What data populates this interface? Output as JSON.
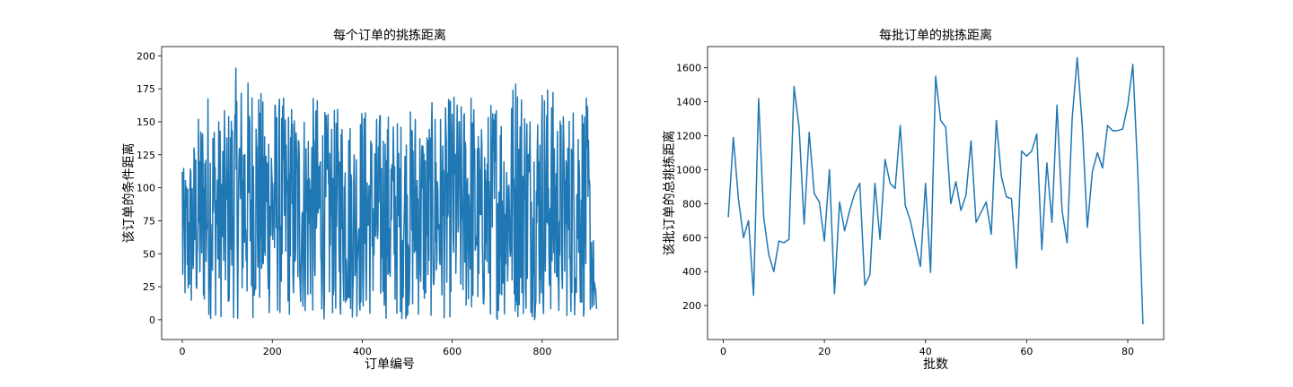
{
  "chart_data": [
    {
      "type": "line",
      "title": "每个订单的挑拣距离",
      "xlabel": "订单编号",
      "ylabel": "该订单的条件距离",
      "xlim": [
        -46,
        968
      ],
      "ylim": [
        -15,
        207
      ],
      "xticks": [
        0,
        200,
        400,
        600,
        800
      ],
      "yticks": [
        0,
        25,
        50,
        75,
        100,
        125,
        150,
        175,
        200
      ],
      "n_points": 922,
      "series": [
        {
          "color": "#1f77b4",
          "x": [
            0,
            20,
            40,
            60,
            80,
            100,
            120,
            140,
            160,
            180,
            200,
            220,
            240,
            260,
            280,
            300,
            320,
            340,
            360,
            380,
            400,
            420,
            440,
            460,
            480,
            500,
            520,
            540,
            560,
            580,
            600,
            620,
            640,
            660,
            680,
            700,
            720,
            740,
            760,
            780,
            800,
            820,
            840,
            860,
            880,
            900,
            921
          ],
          "y": [
            112,
            133,
            162,
            180,
            157,
            160,
            193,
            182,
            192,
            168,
            176,
            170,
            168,
            163,
            167,
            171,
            158,
            160,
            170,
            151,
            168,
            153,
            161,
            160,
            154,
            158,
            168,
            152,
            170,
            158,
            177,
            164,
            184,
            145,
            163,
            180,
            163,
            195,
            181,
            162,
            187,
            179,
            160,
            162,
            183,
            166,
            8
          ],
          "y_min_envelope": [
            0,
            0,
            0,
            0,
            0,
            0,
            0,
            0,
            0,
            0,
            0,
            0,
            0,
            0,
            0,
            0,
            0,
            0,
            0,
            0,
            0,
            0,
            0,
            0,
            0,
            0,
            0,
            0,
            0,
            0,
            0,
            0,
            0,
            0,
            0,
            0,
            0,
            0,
            0,
            0,
            0,
            0,
            0,
            0,
            0,
            0,
            5
          ]
        }
      ]
    },
    {
      "type": "line",
      "title": "每批订单的挑拣距离",
      "xlabel": "批数",
      "ylabel": "该批订单的总挑拣距离",
      "xlim": [
        -3.1,
        87.1
      ],
      "ylim": [
        0,
        1725
      ],
      "xticks": [
        0,
        20,
        40,
        60,
        80
      ],
      "yticks": [
        200,
        400,
        600,
        800,
        1000,
        1200,
        1400,
        1600
      ],
      "series": [
        {
          "color": "#1f77b4",
          "x": [
            1,
            2,
            3,
            4,
            5,
            6,
            7,
            8,
            9,
            10,
            11,
            12,
            13,
            14,
            15,
            16,
            17,
            18,
            19,
            20,
            21,
            22,
            23,
            24,
            25,
            26,
            27,
            28,
            29,
            30,
            31,
            32,
            33,
            34,
            35,
            36,
            37,
            38,
            39,
            40,
            41,
            42,
            43,
            44,
            45,
            46,
            47,
            48,
            49,
            50,
            51,
            52,
            53,
            54,
            55,
            56,
            57,
            58,
            59,
            60,
            61,
            62,
            63,
            64,
            65,
            66,
            67,
            68,
            69,
            70,
            71,
            72,
            73,
            74,
            75,
            76,
            77,
            78,
            79,
            80,
            81,
            82,
            83
          ],
          "y": [
            720,
            1190,
            830,
            600,
            700,
            260,
            1420,
            720,
            500,
            400,
            580,
            570,
            590,
            1490,
            1250,
            680,
            1220,
            860,
            810,
            580,
            1000,
            270,
            810,
            640,
            760,
            860,
            920,
            320,
            380,
            920,
            590,
            1060,
            920,
            890,
            1260,
            790,
            700,
            560,
            430,
            920,
            395,
            1550,
            1290,
            1250,
            800,
            930,
            760,
            850,
            1170,
            690,
            750,
            810,
            620,
            1290,
            960,
            840,
            830,
            420,
            1110,
            1080,
            1110,
            1210,
            530,
            1040,
            690,
            1380,
            760,
            570,
            1300,
            1660,
            1260,
            660,
            990,
            1100,
            1010,
            1260,
            1230,
            1230,
            1240,
            1380,
            1620,
            970,
            90
          ]
        }
      ]
    }
  ]
}
